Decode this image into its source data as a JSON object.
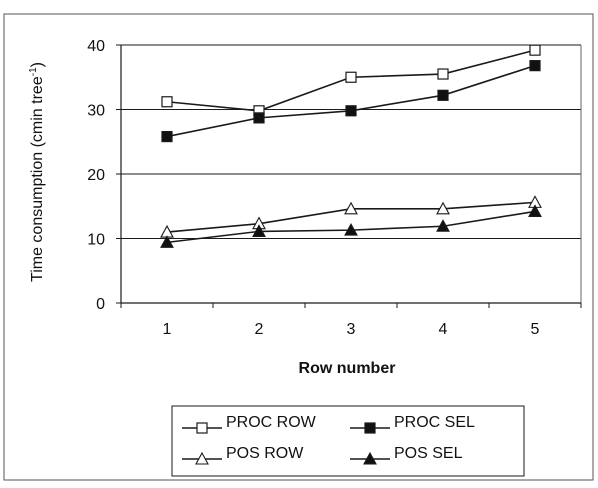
{
  "chart_data": {
    "type": "line",
    "title": "",
    "xlabel": "Row number",
    "ylabel_main": "Time consumption (cmin tree",
    "ylabel_sup": "-1",
    "ylabel_tail": ")",
    "x": [
      1,
      2,
      3,
      4,
      5
    ],
    "x_tick_labels": [
      "1",
      "2",
      "3",
      "4",
      "5"
    ],
    "y_ticks": [
      0,
      10,
      20,
      30,
      40
    ],
    "y_tick_labels": [
      "0",
      "10",
      "20",
      "30",
      "40"
    ],
    "ylim": [
      0,
      40
    ],
    "grid": "horizontal",
    "legend_position": "bottom",
    "series": [
      {
        "name": "PROC ROW",
        "marker": "square-open",
        "values": [
          31.2,
          29.8,
          35.0,
          35.5,
          39.2
        ]
      },
      {
        "name": "PROC SEL",
        "marker": "square-filled",
        "values": [
          25.8,
          28.7,
          29.8,
          32.2,
          36.8
        ]
      },
      {
        "name": "POS ROW",
        "marker": "triangle-open",
        "values": [
          11.0,
          12.3,
          14.6,
          14.6,
          15.6
        ]
      },
      {
        "name": "POS SEL",
        "marker": "triangle-filled",
        "values": [
          9.4,
          11.1,
          11.3,
          11.9,
          14.2
        ]
      }
    ],
    "colors": {
      "line": "#1a1a1a",
      "grid": "#1a1a1a",
      "marker_fill": "#111111"
    }
  }
}
